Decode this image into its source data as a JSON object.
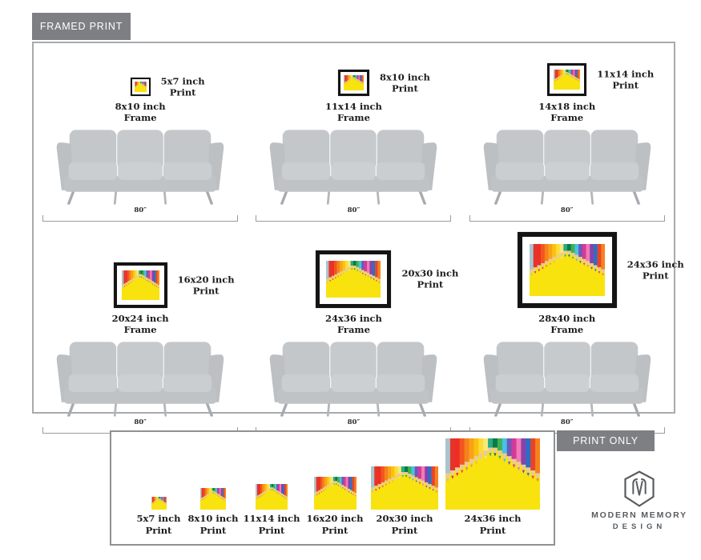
{
  "framed_section": {
    "tab_label": "FRAMED PRINT",
    "sofa_width_label": "80″",
    "groups": [
      {
        "print_size": "5x7 inch",
        "print_word": "Print",
        "frame_size": "8x10 inch",
        "frame_word": "Frame"
      },
      {
        "print_size": "8x10 inch",
        "print_word": "Print",
        "frame_size": "11x14 inch",
        "frame_word": "Frame"
      },
      {
        "print_size": "11x14 inch",
        "print_word": "Print",
        "frame_size": "14x18 inch",
        "frame_word": "Frame"
      },
      {
        "print_size": "16x20 inch",
        "print_word": "Print",
        "frame_size": "20x24 inch",
        "frame_word": "Frame"
      },
      {
        "print_size": "20x30 inch",
        "print_word": "Print",
        "frame_size": "24x36 inch",
        "frame_word": "Frame"
      },
      {
        "print_size": "24x36 inch",
        "print_word": "Print",
        "frame_size": "28x40 inch",
        "frame_word": "Frame"
      }
    ]
  },
  "print_only_section": {
    "tab_label": "PRINT ONLY",
    "items": [
      {
        "size": "5x7 inch",
        "word": "Print"
      },
      {
        "size": "8x10 inch",
        "word": "Print"
      },
      {
        "size": "11x14 inch",
        "word": "Print"
      },
      {
        "size": "16x20 inch",
        "word": "Print"
      },
      {
        "size": "20x30 inch",
        "word": "Print"
      },
      {
        "size": "24x36 inch",
        "word": "Print"
      }
    ]
  },
  "brand": {
    "name_line1": "MODERN MEMORY",
    "name_line2": "DESIGN"
  },
  "artwork": {
    "description": "colored pencils in chevron arrangement on yellow background",
    "background_color": "#f8e30f",
    "pencil_tip_color": "#e9c9a3",
    "pencil_colors": [
      "#aac4cd",
      "#e5342c",
      "#ee2e24",
      "#f1561f",
      "#f6821c",
      "#f9a11a",
      "#fcc10d",
      "#fddc35",
      "#f7e87c",
      "#27ab84",
      "#0b7a47",
      "#41b054",
      "#45c3e4",
      "#7257b8",
      "#d23a99",
      "#f27ab4",
      "#8842ab",
      "#2e6ec4",
      "#e8432b",
      "#f6821c"
    ]
  },
  "ui_colors": {
    "tab_background": "#7d7f82",
    "tab_text": "#ffffff",
    "frame_border": "#141414",
    "panel_border": "#a8aaad",
    "sofa_gray": "#c6c9cc"
  }
}
